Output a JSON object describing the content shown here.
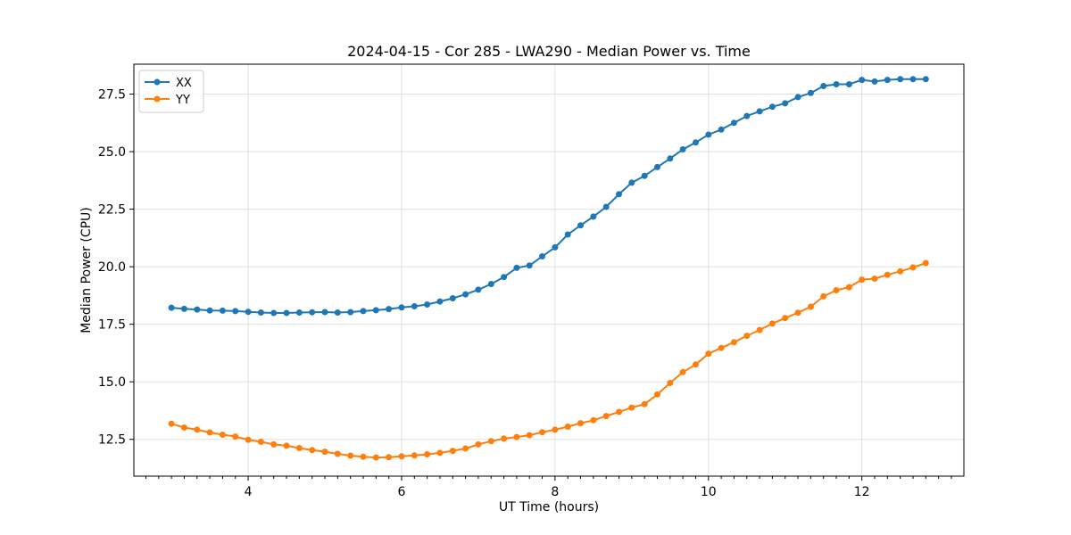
{
  "chart_data": {
    "type": "line",
    "title": "2024-04-15 - Cor 285 - LWA290 - Median Power vs. Time",
    "xlabel": "UT Time (hours)",
    "ylabel": "Median Power (CPU)",
    "xlim": [
      2.51,
      13.33
    ],
    "ylim": [
      10.9,
      28.8
    ],
    "grid": true,
    "legend_position": "upper left",
    "background": "#ffffff",
    "grid_color": "#e0e0e0",
    "x_major_ticks": [
      4,
      6,
      8,
      10,
      12
    ],
    "x_tick_labels": [
      "4",
      "6",
      "8",
      "10",
      "12"
    ],
    "x_minor_tick_step": 0.166667,
    "y_major_ticks": [
      12.5,
      15.0,
      17.5,
      20.0,
      22.5,
      25.0,
      27.5
    ],
    "y_tick_labels": [
      "12.5",
      "15.0",
      "17.5",
      "20.0",
      "22.5",
      "25.0",
      "27.5"
    ],
    "marker": "circle",
    "marker_size": 7,
    "line_width": 2,
    "x": [
      3.0,
      3.1667,
      3.3333,
      3.5,
      3.6667,
      3.8333,
      4.0,
      4.1667,
      4.3333,
      4.5,
      4.6667,
      4.8333,
      5.0,
      5.1667,
      5.3333,
      5.5,
      5.6667,
      5.8333,
      6.0,
      6.1667,
      6.3333,
      6.5,
      6.6667,
      6.8333,
      7.0,
      7.1667,
      7.3333,
      7.5,
      7.6667,
      7.8333,
      8.0,
      8.1667,
      8.3333,
      8.5,
      8.6667,
      8.8333,
      9.0,
      9.1667,
      9.3333,
      9.5,
      9.6667,
      9.8333,
      10.0,
      10.1667,
      10.3333,
      10.5,
      10.6667,
      10.8333,
      11.0,
      11.1667,
      11.3333,
      11.5,
      11.6667,
      11.8333,
      12.0,
      12.1667,
      12.3333,
      12.5,
      12.6667,
      12.8333
    ],
    "series": [
      {
        "name": "XX",
        "color": "#1f77b4",
        "values": [
          18.22,
          18.17,
          18.14,
          18.1,
          18.09,
          18.07,
          18.04,
          18.01,
          17.99,
          17.99,
          18.01,
          18.02,
          18.03,
          18.01,
          18.03,
          18.07,
          18.11,
          18.16,
          18.23,
          18.28,
          18.36,
          18.49,
          18.63,
          18.8,
          19.0,
          19.25,
          19.55,
          19.95,
          20.05,
          20.45,
          20.84,
          21.4,
          21.8,
          22.18,
          22.6,
          23.15,
          23.65,
          23.95,
          24.33,
          24.7,
          25.1,
          25.4,
          25.74,
          25.96,
          26.25,
          26.55,
          26.75,
          26.95,
          27.1,
          27.37,
          27.55,
          27.85,
          27.93,
          27.93,
          28.12,
          28.05,
          28.12,
          28.15,
          28.15,
          28.15
        ]
      },
      {
        "name": "YY",
        "color": "#ff7f0e",
        "values": [
          13.18,
          13.01,
          12.92,
          12.8,
          12.7,
          12.62,
          12.48,
          12.39,
          12.28,
          12.22,
          12.12,
          12.03,
          11.96,
          11.87,
          11.79,
          11.74,
          11.71,
          11.72,
          11.76,
          11.8,
          11.85,
          11.91,
          12.0,
          12.1,
          12.28,
          12.42,
          12.53,
          12.6,
          12.68,
          12.81,
          12.92,
          13.05,
          13.2,
          13.33,
          13.51,
          13.69,
          13.88,
          14.03,
          14.45,
          14.95,
          15.42,
          15.75,
          16.22,
          16.47,
          16.72,
          17.0,
          17.25,
          17.53,
          17.77,
          18.0,
          18.26,
          18.71,
          18.98,
          19.11,
          19.44,
          19.48,
          19.65,
          19.8,
          19.97,
          20.16
        ]
      }
    ]
  }
}
